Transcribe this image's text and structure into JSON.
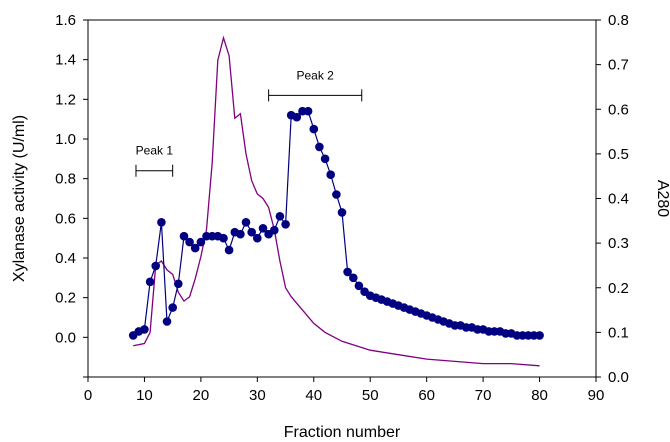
{
  "chart_data": {
    "type": "line",
    "title": "",
    "xlabel": "Fraction number",
    "ylabel": "Xylanase activity (U/ml)",
    "y2label": "A280",
    "xlim": [
      0,
      90
    ],
    "ylim": [
      -0.2,
      1.6
    ],
    "y2lim": [
      0.0,
      0.8
    ],
    "xticks": [
      "0",
      "10",
      "20",
      "30",
      "40",
      "50",
      "60",
      "70",
      "80",
      "90"
    ],
    "yticks": [
      "0.0",
      "0.2",
      "0.4",
      "0.6",
      "0.8",
      "1.0",
      "1.2",
      "1.4",
      "1.6"
    ],
    "y2ticks": [
      "0.0",
      "0.1",
      "0.2",
      "0.3",
      "0.4",
      "0.5",
      "0.6",
      "0.7",
      "0.8"
    ],
    "grid": false,
    "colors": {
      "activity": "#000080",
      "a280": "#800080"
    },
    "annotations": [
      {
        "label": "Peak 1",
        "x_start": 8.5,
        "x_end": 15,
        "y": 0.84
      },
      {
        "label": "Peak 2",
        "x_start": 32,
        "x_end": 48.5,
        "y": 1.22
      }
    ],
    "series": [
      {
        "axis": "left",
        "marker": "circle",
        "x": [
          8,
          9,
          10,
          11,
          12,
          13,
          14,
          15,
          16,
          17,
          18,
          19,
          20,
          21,
          22,
          23,
          24,
          25,
          26,
          27,
          28,
          29,
          30,
          31,
          32,
          33,
          34,
          35,
          36,
          37,
          38,
          39,
          40,
          41,
          42,
          43,
          44,
          45,
          46,
          47,
          48,
          49,
          50,
          51,
          52,
          53,
          54,
          55,
          56,
          57,
          58,
          59,
          60,
          61,
          62,
          63,
          64,
          65,
          66,
          67,
          68,
          69,
          70,
          71,
          72,
          73,
          74,
          75,
          76,
          77,
          78,
          79,
          80
        ],
        "values": [
          0.01,
          0.03,
          0.04,
          0.28,
          0.36,
          0.58,
          0.08,
          0.15,
          0.27,
          0.51,
          0.48,
          0.45,
          0.48,
          0.51,
          0.51,
          0.51,
          0.5,
          0.44,
          0.53,
          0.52,
          0.58,
          0.53,
          0.5,
          0.55,
          0.52,
          0.54,
          0.61,
          0.57,
          1.12,
          1.11,
          1.14,
          1.14,
          1.05,
          0.96,
          0.9,
          0.82,
          0.72,
          0.63,
          0.33,
          0.3,
          0.26,
          0.23,
          0.21,
          0.2,
          0.19,
          0.18,
          0.17,
          0.16,
          0.15,
          0.14,
          0.13,
          0.12,
          0.11,
          0.1,
          0.09,
          0.08,
          0.07,
          0.06,
          0.06,
          0.05,
          0.05,
          0.04,
          0.04,
          0.03,
          0.03,
          0.03,
          0.02,
          0.02,
          0.01,
          0.01,
          0.01,
          0.01,
          0.01
        ]
      },
      {
        "axis": "right",
        "marker": "none",
        "x": [
          8,
          10,
          11,
          12,
          13,
          14,
          15,
          16,
          17,
          18,
          19,
          20,
          21,
          22,
          23,
          24,
          25,
          26,
          27,
          28,
          29,
          30,
          31,
          32,
          33,
          34,
          35,
          36,
          38,
          40,
          42,
          45,
          50,
          55,
          60,
          65,
          70,
          75,
          80
        ],
        "values": [
          0.07,
          0.075,
          0.1,
          0.25,
          0.26,
          0.24,
          0.23,
          0.19,
          0.17,
          0.18,
          0.22,
          0.27,
          0.33,
          0.48,
          0.71,
          0.76,
          0.72,
          0.58,
          0.59,
          0.5,
          0.44,
          0.41,
          0.4,
          0.38,
          0.33,
          0.26,
          0.2,
          0.18,
          0.15,
          0.12,
          0.1,
          0.08,
          0.06,
          0.05,
          0.04,
          0.035,
          0.03,
          0.03,
          0.025
        ]
      }
    ]
  }
}
